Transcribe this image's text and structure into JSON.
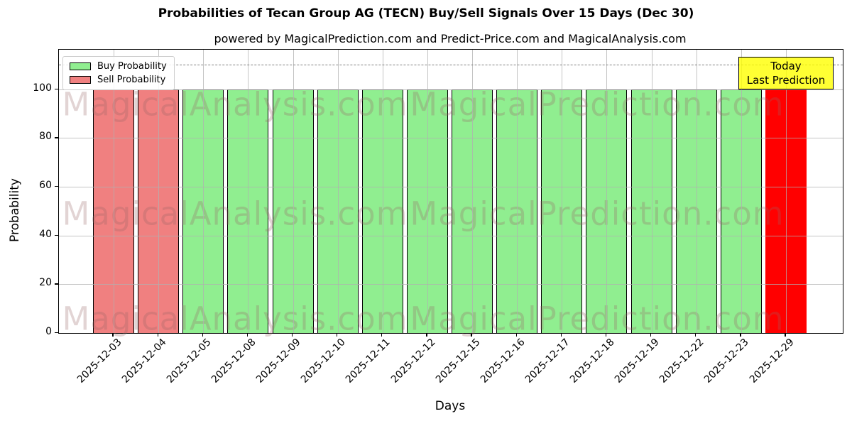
{
  "figure": {
    "title": "Probabilities of Tecan Group AG (TECN) Buy/Sell Signals Over 15 Days (Dec 30)",
    "subtitle": "powered by MagicalPrediction.com and Predict-Price.com and MagicalAnalysis.com"
  },
  "chart_data": {
    "type": "bar",
    "title": "Probabilities of Tecan Group AG (TECN) Buy/Sell Signals Over 15 Days (Dec 30)",
    "subtitle": "powered by MagicalPrediction.com and Predict-Price.com and MagicalAnalysis.com",
    "xlabel": "Days",
    "ylabel": "Probability",
    "ylim": [
      0,
      116
    ],
    "yticks": [
      0,
      20,
      40,
      60,
      80,
      100
    ],
    "grid": true,
    "dashed_line_y": 110,
    "legend_position": "upper-left",
    "categories": [
      "2025-12-03",
      "2025-12-04",
      "2025-12-05",
      "2025-12-08",
      "2025-12-09",
      "2025-12-10",
      "2025-12-11",
      "2025-12-12",
      "2025-12-15",
      "2025-12-16",
      "2025-12-17",
      "2025-12-18",
      "2025-12-19",
      "2025-12-22",
      "2025-12-23",
      "2025-12-29"
    ],
    "series": [
      {
        "name": "Buy Probability",
        "color": "#90EE90",
        "values": [
          0,
          0,
          100,
          100,
          100,
          100,
          100,
          100,
          100,
          100,
          100,
          100,
          100,
          100,
          100,
          0
        ]
      },
      {
        "name": "Sell Probability",
        "color": "#F08080",
        "values": [
          100,
          100,
          0,
          0,
          0,
          0,
          0,
          0,
          0,
          0,
          0,
          0,
          0,
          0,
          0,
          100
        ]
      }
    ],
    "bars": [
      {
        "date": "2025-12-03",
        "value": 100,
        "signal": "sell",
        "color": "#F08080"
      },
      {
        "date": "2025-12-04",
        "value": 100,
        "signal": "sell",
        "color": "#F08080"
      },
      {
        "date": "2025-12-05",
        "value": 100,
        "signal": "buy",
        "color": "#90EE90"
      },
      {
        "date": "2025-12-08",
        "value": 100,
        "signal": "buy",
        "color": "#90EE90"
      },
      {
        "date": "2025-12-09",
        "value": 100,
        "signal": "buy",
        "color": "#90EE90"
      },
      {
        "date": "2025-12-10",
        "value": 100,
        "signal": "buy",
        "color": "#90EE90"
      },
      {
        "date": "2025-12-11",
        "value": 100,
        "signal": "buy",
        "color": "#90EE90"
      },
      {
        "date": "2025-12-12",
        "value": 100,
        "signal": "buy",
        "color": "#90EE90"
      },
      {
        "date": "2025-12-15",
        "value": 100,
        "signal": "buy",
        "color": "#90EE90"
      },
      {
        "date": "2025-12-16",
        "value": 100,
        "signal": "buy",
        "color": "#90EE90"
      },
      {
        "date": "2025-12-17",
        "value": 100,
        "signal": "buy",
        "color": "#90EE90"
      },
      {
        "date": "2025-12-18",
        "value": 100,
        "signal": "buy",
        "color": "#90EE90"
      },
      {
        "date": "2025-12-19",
        "value": 100,
        "signal": "buy",
        "color": "#90EE90"
      },
      {
        "date": "2025-12-22",
        "value": 100,
        "signal": "buy",
        "color": "#90EE90"
      },
      {
        "date": "2025-12-23",
        "value": 100,
        "signal": "buy",
        "color": "#90EE90"
      },
      {
        "date": "2025-12-29",
        "value": 100,
        "signal": "sell-today",
        "color": "#FF0000"
      }
    ],
    "legend": {
      "items": [
        {
          "label": "Buy Probability",
          "color": "#90EE90"
        },
        {
          "label": "Sell Probability",
          "color": "#F08080"
        }
      ]
    },
    "annotation": {
      "line1": "Today",
      "line2": "Last Prediction",
      "bg_color": "#FFFF00"
    },
    "watermarks": {
      "left_text": "MagicalAnalysis.com",
      "right_text": "MagicalPrediction.com",
      "rows": 3
    },
    "colors": {
      "buy": "#90EE90",
      "sell": "#F08080",
      "today": "#FF0000",
      "grid": "#B0B0B0",
      "dashed_line": "#7F7F7F"
    }
  }
}
